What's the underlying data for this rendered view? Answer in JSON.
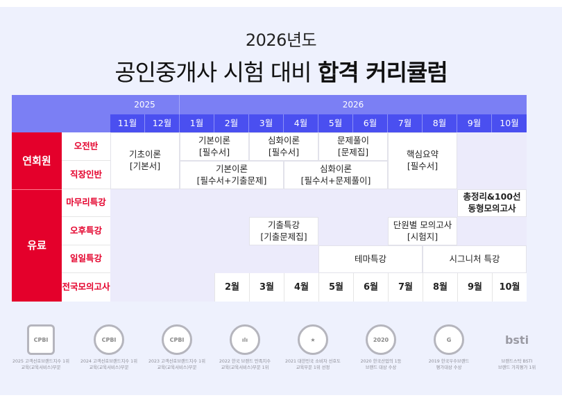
{
  "title": {
    "year": "2026년도",
    "main_prefix": "공인중개사 시험 대비 ",
    "main_bold": "합격 커리큘럼"
  },
  "table": {
    "years": [
      "2025",
      "2026"
    ],
    "months": [
      "11월",
      "12월",
      "1월",
      "2월",
      "3월",
      "4월",
      "5월",
      "6월",
      "7월",
      "8월",
      "9월",
      "10월"
    ],
    "groups": {
      "member": "연회원",
      "paid": "유료"
    },
    "rows": {
      "morning": "오전반",
      "worker": "직장인반",
      "finish": "마무리특강",
      "afternoon": "오후특강",
      "daily": "일일특강",
      "mock": "전국모의고사"
    },
    "cells": {
      "basic_theory": "기초이론\n[기본서]",
      "morning_basic": "기본이론\n[필수서]",
      "morning_deep": "심화이론\n[필수서]",
      "morning_problem": "문제풀이\n[문제집]",
      "core_summary": "핵심요약\n[필수서]",
      "worker_basic": "기본이론\n[필수서+기출문제]",
      "worker_deep": "심화이론\n[필수서+문제풀이]",
      "finish_final": "총정리&100선\n동형모의고사",
      "past_exam": "기출특강\n[기출문제집]",
      "unit_mock": "단원별 모의고사\n[시험지]",
      "theme": "테마특강",
      "signature": "시그니처 특강"
    },
    "mock_months": [
      "2월",
      "3월",
      "4월",
      "5월",
      "6월",
      "7월",
      "8월",
      "9월",
      "10월"
    ]
  },
  "badges": [
    {
      "icon": "CPBI",
      "caption": "2025 고객선호브랜드지수 1위\n교육(교육서비스)부문"
    },
    {
      "icon": "CPBI",
      "caption": "2024 고객선호브랜드지수 1위\n교육(교육서비스)부문"
    },
    {
      "icon": "CPBI",
      "caption": "2023 고객선호브랜드지수 1위\n교육(교육서비스)부문"
    },
    {
      "icon": "ılı",
      "caption": "2022 한국 브랜드 만족지수\n교육(교육서비스)부문 1위"
    },
    {
      "icon": "★",
      "caption": "2021 대한민국 소비자 선호도\n교육부문 1위 선정"
    },
    {
      "icon": "2020",
      "caption": "2020 한국산업의 1등\n브랜드 대상 수상"
    },
    {
      "icon": "G",
      "caption": "2019 한국우수브랜드\n평가대상 수상"
    },
    {
      "icon": "bsti",
      "caption": "브랜드스탁 BSTI\n브랜드 가치평가 1위"
    }
  ]
}
